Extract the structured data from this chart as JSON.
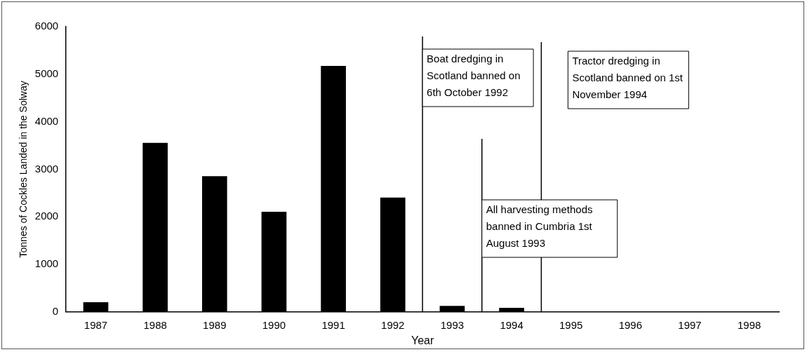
{
  "chart_data": {
    "type": "bar",
    "xlabel": "Year",
    "ylabel": "Tonnes of Cockles Landed in the Solway",
    "x": [
      1987,
      1988,
      1989,
      1990,
      1991,
      1992,
      1993,
      1994,
      1995,
      1996,
      1997,
      1998
    ],
    "values": [
      200,
      3550,
      2850,
      2100,
      5170,
      2400,
      120,
      80,
      0,
      0,
      0,
      0
    ],
    "color": "#000000",
    "xlim": [
      1986.5,
      1998.5
    ],
    "xticks": [
      1987,
      1988,
      1989,
      1990,
      1991,
      1992,
      1993,
      1994,
      1995,
      1996,
      1997,
      1998
    ],
    "ylim": [
      0,
      6000
    ],
    "yticks": [
      0,
      1000,
      2000,
      3000,
      4000,
      5000,
      6000
    ],
    "grid": false,
    "legend": false,
    "ref_lines": [
      {
        "axis": "x",
        "value": 1992.5,
        "label": "Boat dredging in Scotland banned on 6th October 1992",
        "color": "#000000"
      },
      {
        "axis": "x",
        "value": 1993.5,
        "label": "All harvesting methods banned in Cumbria 1st August 1993",
        "color": "#000000"
      },
      {
        "axis": "x",
        "value": 1994.5,
        "label": "Tractor dredging in Scotland banned on 1st November 1994",
        "color": "#000000"
      }
    ]
  }
}
